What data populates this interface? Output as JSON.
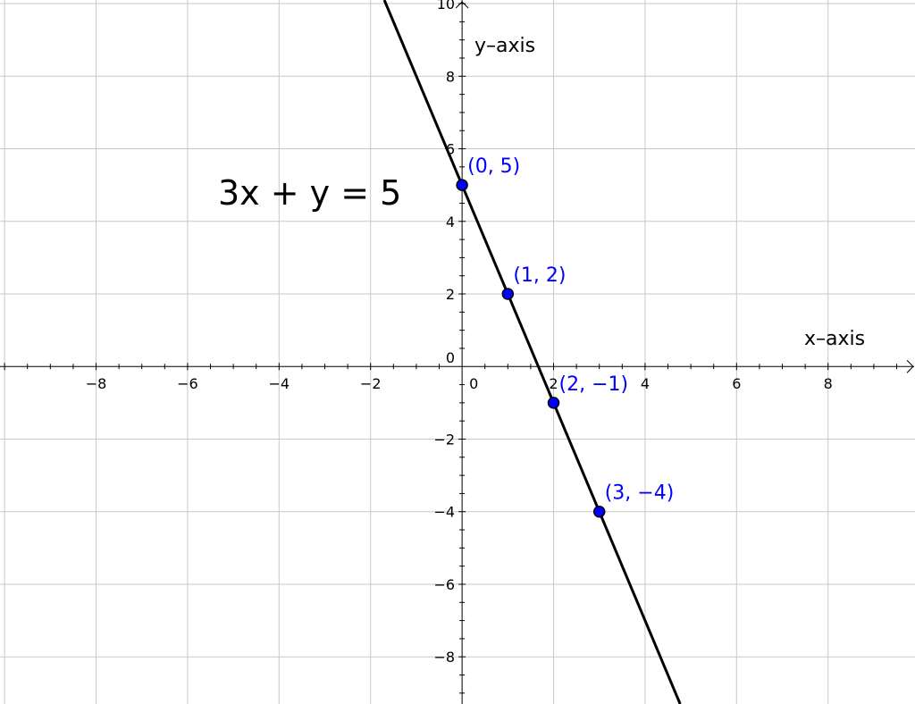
{
  "chart_data": {
    "type": "line",
    "equation": "3x + y = 5",
    "xlabel": "x–axis",
    "ylabel": "y–axis",
    "xlim": [
      -10.1,
      9.9
    ],
    "ylim": [
      -9.3,
      10.1
    ],
    "grid": true,
    "x_ticks": [
      {
        "value": -8,
        "label": "−8"
      },
      {
        "value": -6,
        "label": "−6"
      },
      {
        "value": -4,
        "label": "−4"
      },
      {
        "value": -2,
        "label": "−2"
      },
      {
        "value": 0,
        "label": "0"
      },
      {
        "value": 2,
        "label": "2"
      },
      {
        "value": 4,
        "label": "4"
      },
      {
        "value": 6,
        "label": "6"
      },
      {
        "value": 8,
        "label": "8"
      }
    ],
    "y_ticks": [
      {
        "value": 10,
        "label": "10"
      },
      {
        "value": 8,
        "label": "8"
      },
      {
        "value": 6,
        "label": "6"
      },
      {
        "value": 4,
        "label": "4"
      },
      {
        "value": 2,
        "label": "2"
      },
      {
        "value": 0,
        "label": "0"
      },
      {
        "value": -2,
        "label": "−2"
      },
      {
        "value": -4,
        "label": "−4"
      },
      {
        "value": -6,
        "label": "−6"
      },
      {
        "value": -8,
        "label": "−8"
      }
    ],
    "line": {
      "slope": -3,
      "intercept": 5
    },
    "points": [
      {
        "x": 0,
        "y": 5,
        "label": "(0, 5)"
      },
      {
        "x": 1,
        "y": 2,
        "label": "(1, 2)"
      },
      {
        "x": 2,
        "y": -1,
        "label": "(2, −1)"
      },
      {
        "x": 3,
        "y": -4,
        "label": "(3, −4)"
      }
    ],
    "colors": {
      "points": "#0000ff",
      "labels": "#0000ff",
      "line": "#000000",
      "grid": "#c8c8c8"
    }
  }
}
